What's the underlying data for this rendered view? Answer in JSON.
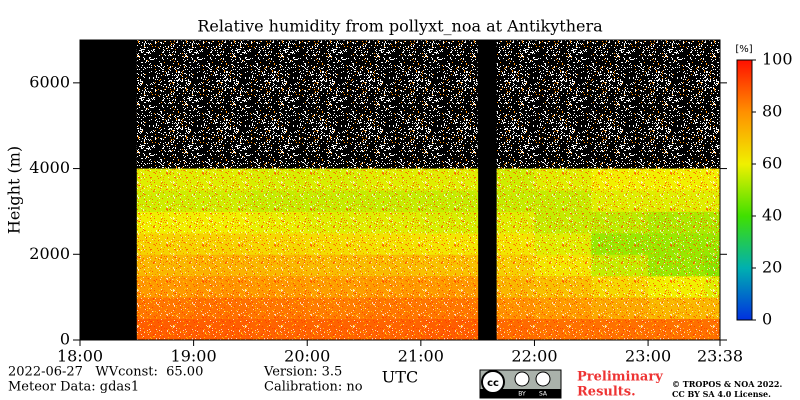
{
  "chart_data": {
    "type": "heatmap",
    "title": "Relative humidity from pollyxt_noa at Antikythera",
    "x_label": "UTC",
    "y_label": "Height (m)",
    "xlim": [
      18,
      23.633
    ],
    "xticks": [
      {
        "value": 18,
        "label": "18:00"
      },
      {
        "value": 19,
        "label": "19:00"
      },
      {
        "value": 20,
        "label": "20:00"
      },
      {
        "value": 21,
        "label": "21:00"
      },
      {
        "value": 22,
        "label": "22:00"
      },
      {
        "value": 23,
        "label": "23:00"
      },
      {
        "value": 23.633,
        "label": "23:38"
      }
    ],
    "ylim": [
      0,
      7000
    ],
    "yticks": [
      0,
      2000,
      4000,
      6000
    ],
    "x_edges": [
      18,
      18.5,
      19,
      19.5,
      20,
      20.5,
      21,
      21.5,
      21.667,
      22,
      22.5,
      23,
      23.5,
      23.633
    ],
    "y_edges": [
      0,
      500,
      1000,
      1500,
      2000,
      2500,
      3000,
      3500,
      4000
    ],
    "values": [
      [
        null,
        null,
        null,
        null,
        null,
        null,
        null,
        null
      ],
      [
        88,
        84,
        78,
        72,
        66,
        60,
        56,
        58
      ],
      [
        88,
        85,
        79,
        73,
        66,
        60,
        56,
        58
      ],
      [
        87,
        84,
        78,
        72,
        65,
        59,
        55,
        57
      ],
      [
        87,
        83,
        77,
        71,
        64,
        58,
        55,
        57
      ],
      [
        87,
        84,
        78,
        71,
        63,
        58,
        55,
        58
      ],
      [
        88,
        84,
        78,
        70,
        62,
        57,
        55,
        58
      ],
      [
        null,
        null,
        null,
        null,
        null,
        null,
        null,
        null
      ],
      [
        86,
        80,
        72,
        67,
        62,
        58,
        55,
        56
      ],
      [
        85,
        78,
        70,
        62,
        58,
        55,
        55,
        58
      ],
      [
        85,
        75,
        65,
        55,
        50,
        54,
        58,
        60
      ],
      [
        85,
        72,
        60,
        50,
        50,
        52,
        58,
        60
      ],
      [
        85,
        72,
        58,
        48,
        50,
        52,
        58,
        60
      ]
    ],
    "zlim": [
      0,
      100
    ],
    "colorbar": {
      "label": "[%]",
      "ticks": [
        0,
        20,
        40,
        60,
        80,
        100
      ],
      "colors": [
        "#0030e0",
        "#00b0b0",
        "#40e000",
        "#f0f000",
        "#ff9000",
        "#ff1000"
      ]
    },
    "footer": {
      "date_line": "2022-06-27   WVconst:  65.00",
      "meteor": "Meteor Data: gdas1",
      "version": "Version: 3.5",
      "calibration": "Calibration: no",
      "preliminary": [
        "Preliminary",
        "Results."
      ],
      "copyright": [
        "© TROPOS & NOA 2022.",
        "CC BY SA 4.0 License."
      ],
      "badge": [
        "BY",
        "SA"
      ]
    }
  }
}
